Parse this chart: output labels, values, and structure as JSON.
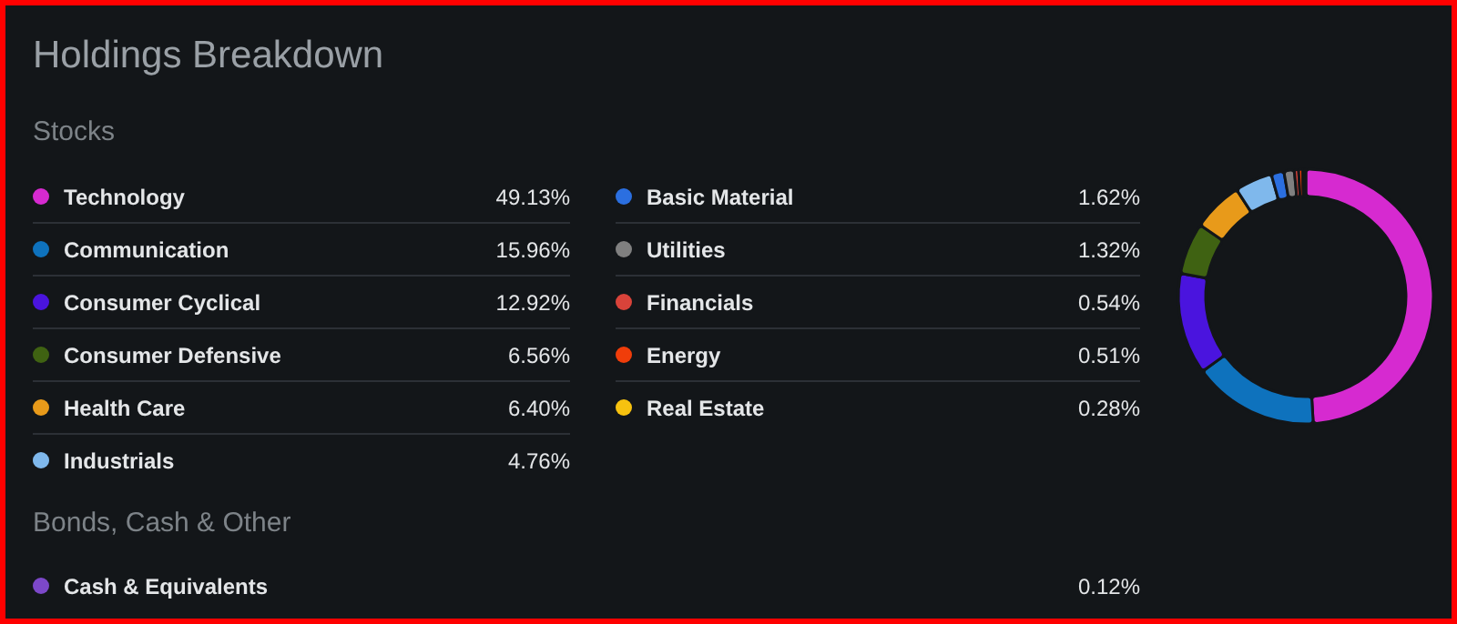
{
  "chart_data": {
    "type": "donut",
    "title": "Holdings Breakdown",
    "annotations": [
      "Stocks",
      "Bonds, Cash & Other"
    ],
    "categories": [
      "Technology",
      "Communication",
      "Consumer Cyclical",
      "Consumer Defensive",
      "Health Care",
      "Industrials",
      "Basic Material",
      "Utilities",
      "Financials",
      "Energy",
      "Real Estate",
      "Cash & Equivalents"
    ],
    "values": [
      49.13,
      15.96,
      12.92,
      6.56,
      6.4,
      4.76,
      1.62,
      1.32,
      0.54,
      0.51,
      0.28,
      0.12
    ],
    "value_labels": [
      "49.13%",
      "15.96%",
      "12.92%",
      "6.56%",
      "6.40%",
      "4.76%",
      "1.62%",
      "1.32%",
      "0.54%",
      "0.51%",
      "0.28%",
      "0.12%"
    ],
    "colors": [
      "#d62ad0",
      "#0e72bd",
      "#4a14de",
      "#3f6212",
      "#e89a1a",
      "#7fb8ec",
      "#2b6fe0",
      "#808080",
      "#d9433a",
      "#f03d0a",
      "#f7c20f",
      "#7c48c9"
    ],
    "legend": "left"
  }
}
